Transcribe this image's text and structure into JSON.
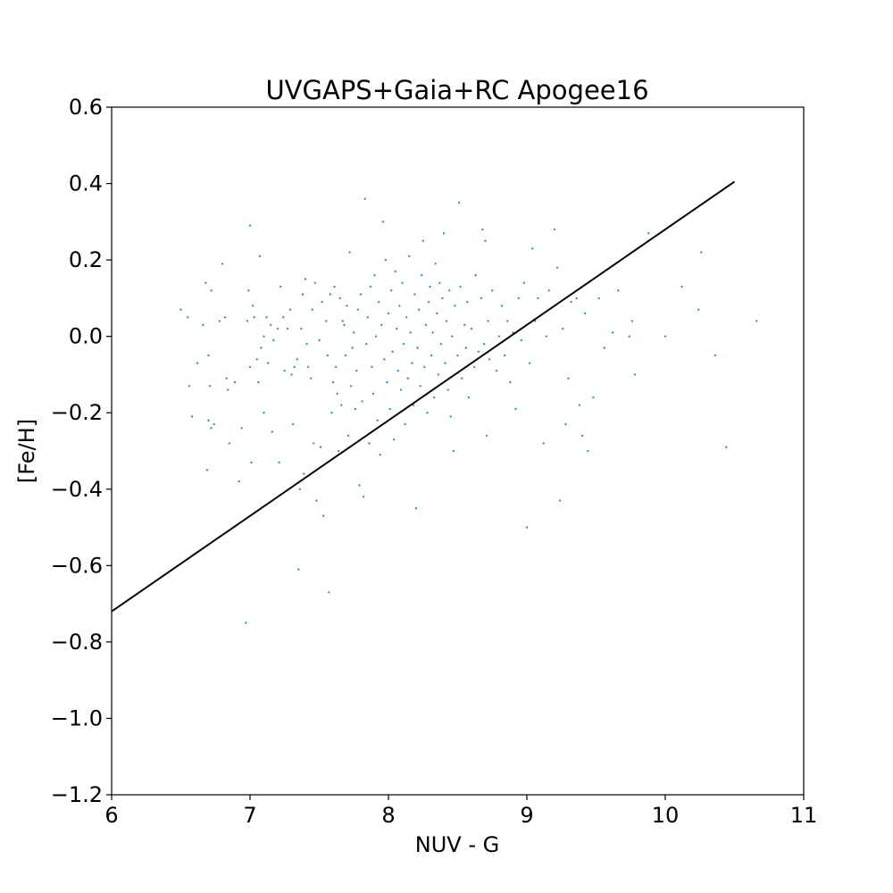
{
  "chart_data": {
    "type": "scatter",
    "title": "UVGAPS+Gaia+RC Apogee16",
    "xlabel": "NUV - G",
    "ylabel": "[Fe/H]",
    "xlim": [
      6,
      11
    ],
    "ylim": [
      -1.2,
      0.6
    ],
    "grid": false,
    "x_ticks": [
      6,
      7,
      8,
      9,
      10,
      11
    ],
    "x_tick_labels": [
      "6",
      "7",
      "8",
      "9",
      "10",
      "11"
    ],
    "y_ticks": [
      -1.2,
      -1.0,
      -0.8,
      -0.6,
      -0.4,
      -0.2,
      0.0,
      0.2,
      0.4,
      0.6
    ],
    "y_tick_labels": [
      "−1.2",
      "−1.0",
      "−0.8",
      "−0.6",
      "−0.4",
      "−0.2",
      "0.0",
      "0.2",
      "0.4",
      "0.6"
    ],
    "colors": {
      "points": "#1f77b4",
      "fit_line": "#000000",
      "axes": "#000000"
    },
    "fit_line": {
      "x": [
        6.0,
        10.5
      ],
      "y": [
        -0.72,
        0.405
      ]
    },
    "series": [
      {
        "points": [
          [
            6.5,
            0.07
          ],
          [
            6.55,
            0.05
          ],
          [
            6.56,
            -0.13
          ],
          [
            6.58,
            -0.21
          ],
          [
            6.62,
            -0.07
          ],
          [
            6.66,
            0.03
          ],
          [
            6.68,
            0.14
          ],
          [
            6.69,
            -0.35
          ],
          [
            6.7,
            -0.22
          ],
          [
            6.7,
            -0.05
          ],
          [
            6.71,
            -0.13
          ],
          [
            6.72,
            0.12
          ],
          [
            6.72,
            -0.24
          ],
          [
            6.74,
            -0.23
          ],
          [
            6.78,
            0.04
          ],
          [
            6.8,
            0.19
          ],
          [
            6.82,
            0.05
          ],
          [
            6.83,
            -0.11
          ],
          [
            6.84,
            -0.14
          ],
          [
            6.85,
            -0.28
          ],
          [
            6.89,
            -0.12
          ],
          [
            6.92,
            -0.38
          ],
          [
            6.94,
            -0.24
          ],
          [
            6.97,
            -0.75
          ],
          [
            6.98,
            0.04
          ],
          [
            6.99,
            0.12
          ],
          [
            7.0,
            0.29
          ],
          [
            7.0,
            -0.08
          ],
          [
            7.01,
            -0.33
          ],
          [
            7.02,
            0.08
          ],
          [
            7.03,
            0.05
          ],
          [
            7.05,
            -0.06
          ],
          [
            7.06,
            -0.12
          ],
          [
            7.07,
            0.21
          ],
          [
            7.08,
            -0.03
          ],
          [
            7.1,
            0.0
          ],
          [
            7.1,
            -0.2
          ],
          [
            7.12,
            0.05
          ],
          [
            7.13,
            -0.07
          ],
          [
            7.15,
            0.03
          ],
          [
            7.16,
            -0.25
          ],
          [
            7.17,
            -0.01
          ],
          [
            7.2,
            0.02
          ],
          [
            7.21,
            -0.33
          ],
          [
            7.22,
            0.13
          ],
          [
            7.24,
            0.05
          ],
          [
            7.25,
            -0.09
          ],
          [
            7.27,
            0.02
          ],
          [
            7.29,
            0.07
          ],
          [
            7.3,
            -0.1
          ],
          [
            7.31,
            -0.23
          ],
          [
            7.32,
            -0.08
          ],
          [
            7.34,
            -0.06
          ],
          [
            7.35,
            -0.61
          ],
          [
            7.36,
            -0.4
          ],
          [
            7.37,
            0.02
          ],
          [
            7.38,
            0.11
          ],
          [
            7.39,
            -0.36
          ],
          [
            7.4,
            0.15
          ],
          [
            7.41,
            -0.02
          ],
          [
            7.42,
            -0.08
          ],
          [
            7.44,
            -0.11
          ],
          [
            7.45,
            0.07
          ],
          [
            7.46,
            -0.28
          ],
          [
            7.47,
            0.14
          ],
          [
            7.48,
            -0.43
          ],
          [
            7.5,
            -0.01
          ],
          [
            7.51,
            -0.29
          ],
          [
            7.52,
            0.09
          ],
          [
            7.53,
            -0.47
          ],
          [
            7.55,
            0.04
          ],
          [
            7.56,
            -0.05
          ],
          [
            7.57,
            -0.67
          ],
          [
            7.58,
            0.11
          ],
          [
            7.59,
            -0.2
          ],
          [
            7.6,
            -0.12
          ],
          [
            7.61,
            0.13
          ],
          [
            7.62,
            -0.08
          ],
          [
            7.63,
            -0.15
          ],
          [
            7.64,
            -0.3
          ],
          [
            7.65,
            0.1
          ],
          [
            7.66,
            -0.18
          ],
          [
            7.67,
            0.04
          ],
          [
            7.68,
            0.03
          ],
          [
            7.69,
            -0.05
          ],
          [
            7.7,
            0.08
          ],
          [
            7.71,
            -0.26
          ],
          [
            7.72,
            0.22
          ],
          [
            7.73,
            -0.13
          ],
          [
            7.74,
            -0.03
          ],
          [
            7.75,
            0.01
          ],
          [
            7.76,
            -0.19
          ],
          [
            7.77,
            -0.09
          ],
          [
            7.78,
            0.07
          ],
          [
            7.79,
            -0.39
          ],
          [
            7.8,
            0.11
          ],
          [
            7.81,
            -0.17
          ],
          [
            7.82,
            -0.42
          ],
          [
            7.83,
            0.36
          ],
          [
            7.84,
            -0.02
          ],
          [
            7.85,
            0.05
          ],
          [
            7.86,
            -0.28
          ],
          [
            7.87,
            0.13
          ],
          [
            7.88,
            -0.08
          ],
          [
            7.89,
            -0.15
          ],
          [
            7.9,
            0.16
          ],
          [
            7.91,
            0.0
          ],
          [
            7.92,
            -0.22
          ],
          [
            7.93,
            0.09
          ],
          [
            7.94,
            -0.31
          ],
          [
            7.95,
            0.03
          ],
          [
            7.96,
            0.3
          ],
          [
            7.97,
            -0.06
          ],
          [
            7.98,
            0.2
          ],
          [
            7.99,
            -0.12
          ],
          [
            8.0,
            0.06
          ],
          [
            8.01,
            -0.19
          ],
          [
            8.02,
            0.12
          ],
          [
            8.03,
            -0.04
          ],
          [
            8.04,
            -0.27
          ],
          [
            8.05,
            0.17
          ],
          [
            8.06,
            0.02
          ],
          [
            8.07,
            -0.09
          ],
          [
            8.08,
            0.08
          ],
          [
            8.09,
            -0.14
          ],
          [
            8.1,
            0.14
          ],
          [
            8.11,
            -0.02
          ],
          [
            8.12,
            -0.23
          ],
          [
            8.13,
            0.05
          ],
          [
            8.14,
            -0.11
          ],
          [
            8.15,
            0.21
          ],
          [
            8.16,
            0.01
          ],
          [
            8.17,
            -0.07
          ],
          [
            8.18,
            -0.18
          ],
          [
            8.19,
            0.11
          ],
          [
            8.2,
            -0.45
          ],
          [
            8.21,
            -0.03
          ],
          [
            8.22,
            0.07
          ],
          [
            8.23,
            -0.13
          ],
          [
            8.24,
            0.16
          ],
          [
            8.25,
            0.25
          ],
          [
            8.26,
            -0.08
          ],
          [
            8.27,
            0.03
          ],
          [
            8.28,
            -0.2
          ],
          [
            8.29,
            0.09
          ],
          [
            8.3,
            0.13
          ],
          [
            8.31,
            -0.05
          ],
          [
            8.32,
            0.01
          ],
          [
            8.33,
            -0.16
          ],
          [
            8.34,
            0.19
          ],
          [
            8.35,
            0.06
          ],
          [
            8.36,
            -0.1
          ],
          [
            8.37,
            0.14
          ],
          [
            8.38,
            -0.02
          ],
          [
            8.39,
            0.1
          ],
          [
            8.4,
            0.27
          ],
          [
            8.41,
            -0.07
          ],
          [
            8.42,
            0.04
          ],
          [
            8.43,
            -0.14
          ],
          [
            8.44,
            0.12
          ],
          [
            8.45,
            -0.21
          ],
          [
            8.46,
            0.0
          ],
          [
            8.47,
            -0.3
          ],
          [
            8.48,
            0.08
          ],
          [
            8.5,
            -0.05
          ],
          [
            8.51,
            0.35
          ],
          [
            8.52,
            0.13
          ],
          [
            8.53,
            -0.11
          ],
          [
            8.55,
            0.03
          ],
          [
            8.56,
            -0.03
          ],
          [
            8.57,
            0.09
          ],
          [
            8.58,
            -0.16
          ],
          [
            8.6,
            0.02
          ],
          [
            8.62,
            -0.08
          ],
          [
            8.63,
            0.16
          ],
          [
            8.65,
            -0.04
          ],
          [
            8.67,
            0.1
          ],
          [
            8.68,
            0.28
          ],
          [
            8.69,
            -0.02
          ],
          [
            8.7,
            0.25
          ],
          [
            8.71,
            -0.26
          ],
          [
            8.72,
            0.04
          ],
          [
            8.73,
            -0.06
          ],
          [
            8.75,
            0.12
          ],
          [
            8.78,
            -0.09
          ],
          [
            8.8,
            0.0
          ],
          [
            8.82,
            0.08
          ],
          [
            8.84,
            -0.05
          ],
          [
            8.86,
            0.04
          ],
          [
            8.88,
            -0.12
          ],
          [
            8.9,
            0.01
          ],
          [
            8.92,
            -0.19
          ],
          [
            8.94,
            0.1
          ],
          [
            8.96,
            -0.01
          ],
          [
            8.98,
            0.14
          ],
          [
            9.0,
            -0.5
          ],
          [
            9.02,
            -0.07
          ],
          [
            9.04,
            0.23
          ],
          [
            9.06,
            0.04
          ],
          [
            9.08,
            0.1
          ],
          [
            9.12,
            -0.28
          ],
          [
            9.14,
            0.0
          ],
          [
            9.16,
            0.12
          ],
          [
            9.2,
            0.28
          ],
          [
            9.22,
            0.18
          ],
          [
            9.24,
            -0.43
          ],
          [
            9.26,
            0.02
          ],
          [
            9.28,
            -0.23
          ],
          [
            9.3,
            -0.11
          ],
          [
            9.32,
            0.09
          ],
          [
            9.36,
            0.1
          ],
          [
            9.38,
            -0.18
          ],
          [
            9.4,
            -0.26
          ],
          [
            9.42,
            0.06
          ],
          [
            9.44,
            -0.3
          ],
          [
            9.48,
            -0.16
          ],
          [
            9.52,
            0.1
          ],
          [
            9.56,
            -0.03
          ],
          [
            9.62,
            0.01
          ],
          [
            9.66,
            0.12
          ],
          [
            9.74,
            0.0
          ],
          [
            9.76,
            0.04
          ],
          [
            9.78,
            -0.1
          ],
          [
            9.88,
            0.27
          ],
          [
            10.0,
            0.0
          ],
          [
            10.12,
            0.13
          ],
          [
            10.24,
            0.07
          ],
          [
            10.26,
            0.22
          ],
          [
            10.36,
            -0.05
          ],
          [
            10.44,
            -0.29
          ],
          [
            10.66,
            0.04
          ]
        ]
      }
    ]
  }
}
